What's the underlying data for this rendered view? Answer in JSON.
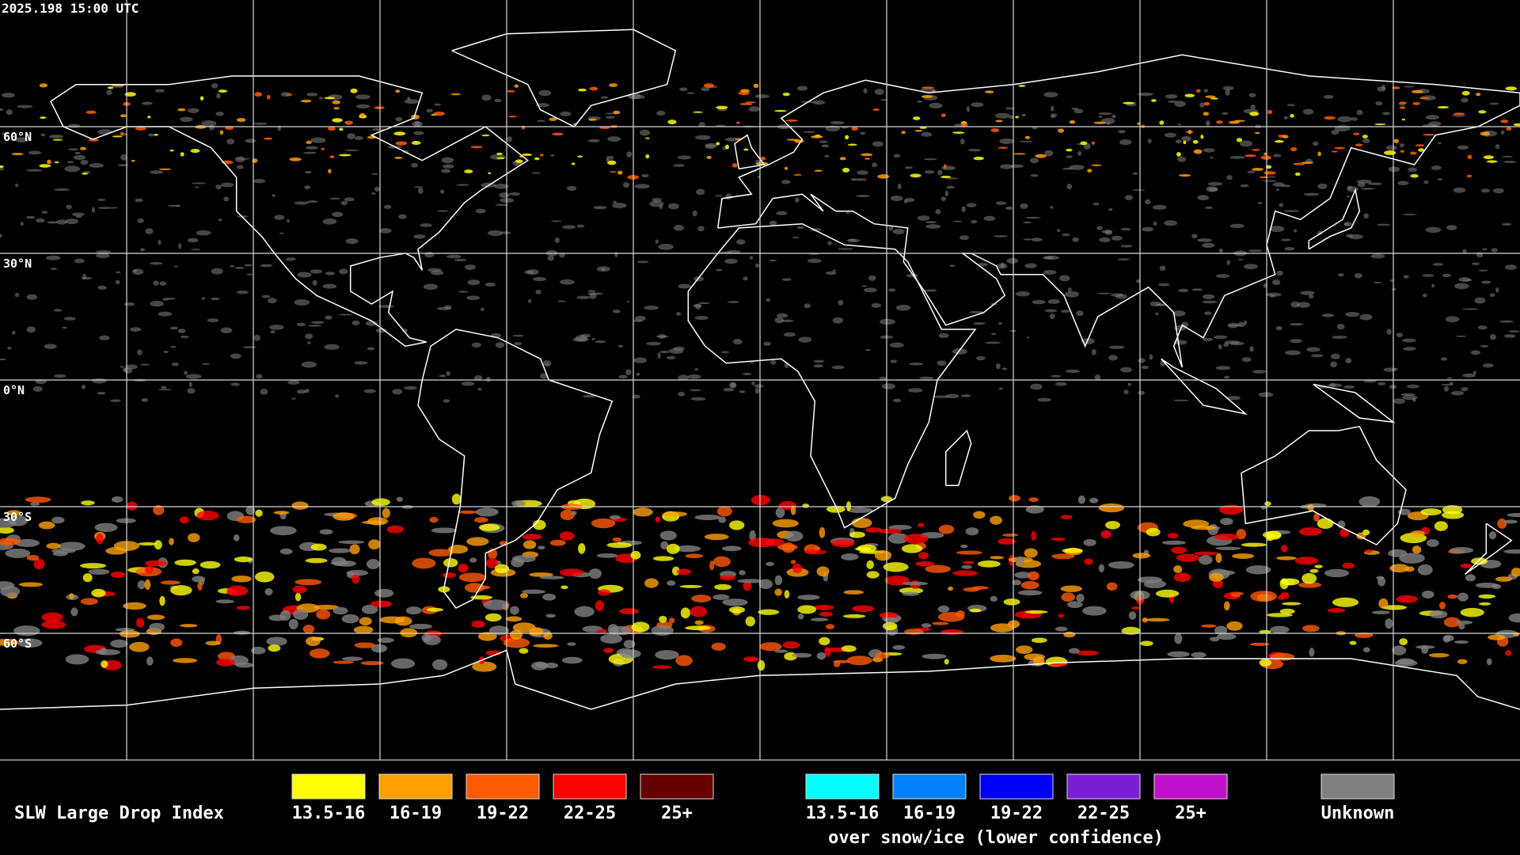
{
  "header": {
    "timestamp": "2025.198 15:00 UTC"
  },
  "grid": {
    "lat_labels": [
      "60°N",
      "30°N",
      "0°N",
      "30°S",
      "60°S"
    ]
  },
  "legend": {
    "title": "SLW Large Drop Index",
    "groups": [
      {
        "items": [
          {
            "label": "13.5-16",
            "color": "#ffff00"
          },
          {
            "label": "16-19",
            "color": "#ffa000"
          },
          {
            "label": "19-22",
            "color": "#ff5a00"
          },
          {
            "label": "22-25",
            "color": "#ff0000"
          },
          {
            "label": "25+",
            "color": "#640000"
          }
        ]
      },
      {
        "subtitle": "over snow/ice (lower confidence)",
        "items": [
          {
            "label": "13.5-16",
            "color": "#00ffff"
          },
          {
            "label": "16-19",
            "color": "#0080ff"
          },
          {
            "label": "19-22",
            "color": "#0000ff"
          },
          {
            "label": "22-25",
            "color": "#7a1fd6"
          },
          {
            "label": "25+",
            "color": "#c010c8"
          }
        ]
      }
    ],
    "unknown": {
      "label": "Unknown",
      "color": "#808080"
    }
  }
}
